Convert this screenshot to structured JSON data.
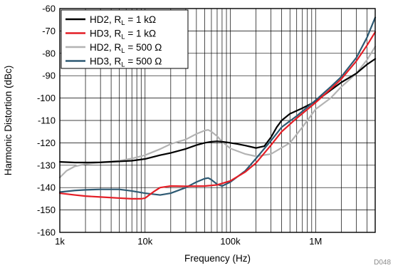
{
  "chart_data": {
    "type": "line",
    "title": "",
    "xlabel": "Frequency (Hz)",
    "ylabel": "Harmonic Distortion (dBc)",
    "xscale": "log",
    "xlim": [
      1000,
      5000000
    ],
    "ylim": [
      -160,
      -60
    ],
    "grid": true,
    "legend_position": "top-left",
    "x_tick_labels": [
      {
        "value": 1000,
        "label": "1k"
      },
      {
        "value": 10000,
        "label": "10k"
      },
      {
        "value": 100000,
        "label": "100k"
      },
      {
        "value": 1000000,
        "label": "1M"
      }
    ],
    "y_ticks": [
      -160,
      -150,
      -140,
      -130,
      -120,
      -110,
      -100,
      -90,
      -80,
      -70,
      -60
    ],
    "figure_id": "D048",
    "series": [
      {
        "name": "HD2, R_L = 1 kΩ",
        "legend": {
          "pre": "HD2, R",
          "sub": "L",
          "post": " = 1 kΩ"
        },
        "color": "#000000",
        "points": [
          [
            1000,
            -128.5
          ],
          [
            1500,
            -128.8
          ],
          [
            2000,
            -128.8
          ],
          [
            3000,
            -128.7
          ],
          [
            5000,
            -128.3
          ],
          [
            7000,
            -128
          ],
          [
            10000,
            -127.2
          ],
          [
            15000,
            -125.5
          ],
          [
            20000,
            -124.5
          ],
          [
            30000,
            -122.7
          ],
          [
            40000,
            -121
          ],
          [
            50000,
            -120
          ],
          [
            60000,
            -119.5
          ],
          [
            70000,
            -119.3
          ],
          [
            80000,
            -119.5
          ],
          [
            100000,
            -120
          ],
          [
            120000,
            -120.5
          ],
          [
            150000,
            -121.2
          ],
          [
            200000,
            -122.3
          ],
          [
            250000,
            -121.5
          ],
          [
            300000,
            -117.5
          ],
          [
            350000,
            -113
          ],
          [
            400000,
            -110
          ],
          [
            500000,
            -107
          ],
          [
            700000,
            -104.5
          ],
          [
            1000000,
            -101.5
          ],
          [
            1500000,
            -96.5
          ],
          [
            2000000,
            -93
          ],
          [
            3000000,
            -89
          ],
          [
            4000000,
            -85
          ],
          [
            5000000,
            -82.5
          ]
        ]
      },
      {
        "name": "HD3, R_L = 1 kΩ",
        "legend": {
          "pre": "HD3, R",
          "sub": "L",
          "post": " = 1 kΩ"
        },
        "color": "#e41e26",
        "points": [
          [
            1000,
            -142.5
          ],
          [
            1500,
            -143.3
          ],
          [
            2000,
            -143.8
          ],
          [
            3000,
            -144.2
          ],
          [
            5000,
            -144.7
          ],
          [
            7000,
            -145
          ],
          [
            9000,
            -145
          ],
          [
            10000,
            -144.7
          ],
          [
            11000,
            -143.5
          ],
          [
            13000,
            -141.5
          ],
          [
            15000,
            -140
          ],
          [
            20000,
            -139.3
          ],
          [
            30000,
            -139.4
          ],
          [
            50000,
            -139.3
          ],
          [
            70000,
            -138.8
          ],
          [
            100000,
            -137
          ],
          [
            150000,
            -133
          ],
          [
            200000,
            -129
          ],
          [
            300000,
            -121
          ],
          [
            400000,
            -115
          ],
          [
            600000,
            -109
          ],
          [
            1000000,
            -102
          ],
          [
            1500000,
            -96
          ],
          [
            2000000,
            -91.5
          ],
          [
            3000000,
            -83.5
          ],
          [
            4000000,
            -76.5
          ],
          [
            5000000,
            -70.5
          ]
        ]
      },
      {
        "name": "HD2, R_L = 500 Ω",
        "legend": {
          "pre": "HD2, R",
          "sub": "L",
          "post": " = 500 Ω"
        },
        "color": "#b3b3b3",
        "points": [
          [
            1000,
            -135.5
          ],
          [
            1200,
            -132.5
          ],
          [
            1500,
            -130.5
          ],
          [
            2000,
            -129.5
          ],
          [
            3000,
            -128.7
          ],
          [
            5000,
            -128
          ],
          [
            7000,
            -127
          ],
          [
            10000,
            -125.5
          ],
          [
            15000,
            -122.8
          ],
          [
            20000,
            -120.5
          ],
          [
            30000,
            -118.5
          ],
          [
            40000,
            -116
          ],
          [
            50000,
            -114.5
          ],
          [
            55000,
            -114.2
          ],
          [
            60000,
            -115
          ],
          [
            70000,
            -117
          ],
          [
            80000,
            -119.5
          ],
          [
            100000,
            -122.5
          ],
          [
            150000,
            -125
          ],
          [
            200000,
            -126
          ],
          [
            300000,
            -125
          ],
          [
            500000,
            -120
          ],
          [
            700000,
            -113
          ],
          [
            1000000,
            -105
          ],
          [
            1500000,
            -100
          ],
          [
            2000000,
            -95
          ],
          [
            3000000,
            -89
          ],
          [
            4000000,
            -83
          ],
          [
            5000000,
            -77
          ]
        ]
      },
      {
        "name": "HD3, R_L = 500 Ω",
        "legend": {
          "pre": "HD3, R",
          "sub": "L",
          "post": " = 500 Ω"
        },
        "color": "#2e5a73",
        "points": [
          [
            1000,
            -142
          ],
          [
            1500,
            -141.3
          ],
          [
            2000,
            -141
          ],
          [
            3000,
            -140.8
          ],
          [
            5000,
            -140.8
          ],
          [
            7000,
            -141.5
          ],
          [
            10000,
            -142.5
          ],
          [
            15000,
            -143.3
          ],
          [
            20000,
            -142.5
          ],
          [
            30000,
            -140
          ],
          [
            40000,
            -137.5
          ],
          [
            50000,
            -136
          ],
          [
            55000,
            -135.7
          ],
          [
            60000,
            -136.5
          ],
          [
            70000,
            -138.5
          ],
          [
            80000,
            -139.3
          ],
          [
            100000,
            -137.5
          ],
          [
            150000,
            -132.5
          ],
          [
            200000,
            -127
          ],
          [
            300000,
            -119
          ],
          [
            400000,
            -113
          ],
          [
            600000,
            -108
          ],
          [
            1000000,
            -101
          ],
          [
            1500000,
            -95
          ],
          [
            2000000,
            -90.5
          ],
          [
            3000000,
            -82
          ],
          [
            4000000,
            -73
          ],
          [
            5000000,
            -64
          ]
        ]
      }
    ]
  }
}
